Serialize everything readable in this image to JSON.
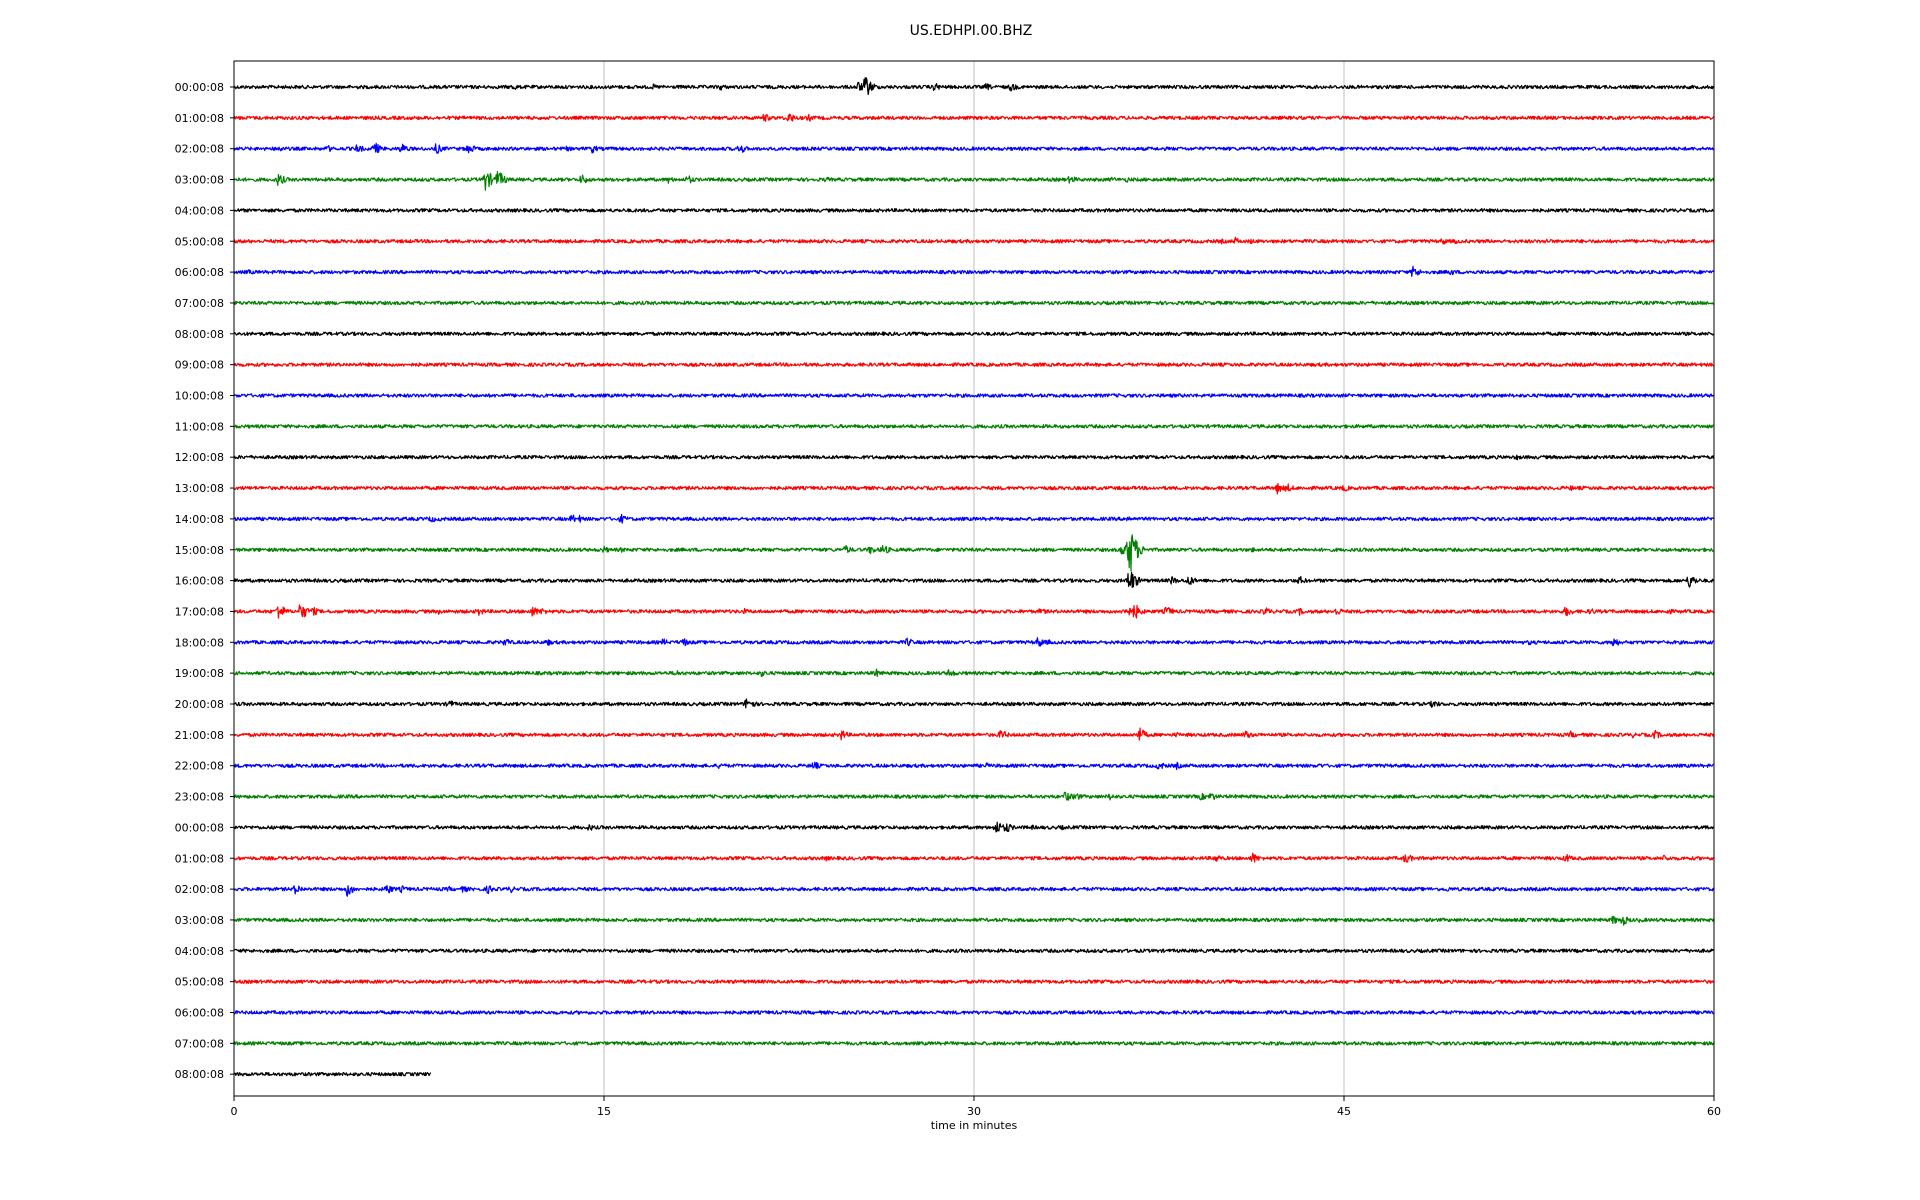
{
  "chart_data": {
    "type": "line",
    "title": "US.EDHPI.00.BHZ",
    "xlabel": "time in minutes",
    "xlim": [
      0,
      60
    ],
    "x_ticks": [
      0,
      15,
      30,
      45,
      60
    ],
    "x_tick_labels": [
      "0",
      "15",
      "30",
      "45",
      "60"
    ],
    "grid": "vertical",
    "colors": [
      "#000000",
      "#ff0000",
      "#0000ff",
      "#008000"
    ],
    "rows": [
      {
        "label": "00:00:08",
        "color": "#000000",
        "end": 60,
        "events": [
          [
            5,
            2
          ],
          [
            11.3,
            4
          ],
          [
            17,
            3
          ],
          [
            19.7,
            4
          ],
          [
            25.3,
            6
          ],
          [
            25.6,
            12
          ],
          [
            28.4,
            5
          ],
          [
            30.5,
            4
          ],
          [
            31.5,
            5
          ],
          [
            56.5,
            2
          ]
        ]
      },
      {
        "label": "01:00:08",
        "color": "#ff0000",
        "end": 60,
        "events": [
          [
            21.5,
            5
          ],
          [
            22.5,
            6
          ],
          [
            23.3,
            4
          ],
          [
            28.5,
            2
          ]
        ]
      },
      {
        "label": "02:00:08",
        "color": "#0000ff",
        "end": 60,
        "events": [
          [
            1.8,
            4
          ],
          [
            3.8,
            4
          ],
          [
            5,
            5
          ],
          [
            5.7,
            7
          ],
          [
            6.8,
            6
          ],
          [
            8.2,
            6
          ],
          [
            9.5,
            6
          ],
          [
            13.5,
            3
          ],
          [
            14.5,
            5
          ],
          [
            20.5,
            6
          ]
        ]
      },
      {
        "label": "03:00:08",
        "color": "#008000",
        "end": 60,
        "events": [
          [
            1.8,
            7
          ],
          [
            10.2,
            12
          ],
          [
            10.7,
            10
          ],
          [
            14.1,
            6
          ],
          [
            17.6,
            4
          ],
          [
            18.4,
            5
          ],
          [
            24,
            3
          ],
          [
            33.9,
            5
          ],
          [
            35.6,
            3
          ],
          [
            36.2,
            3
          ]
        ]
      },
      {
        "label": "04:00:08",
        "color": "#000000",
        "end": 60,
        "events": []
      },
      {
        "label": "05:00:08",
        "color": "#ff0000",
        "end": 60,
        "events": [
          [
            40,
            3
          ],
          [
            40.6,
            4
          ],
          [
            41.2,
            3
          ],
          [
            45.2,
            2
          ],
          [
            49,
            4
          ],
          [
            49.5,
            3
          ],
          [
            53.2,
            3
          ],
          [
            55.4,
            2
          ]
        ]
      },
      {
        "label": "06:00:08",
        "color": "#0000ff",
        "end": 60,
        "events": [
          [
            0.6,
            3
          ],
          [
            8,
            2
          ],
          [
            47.8,
            7
          ],
          [
            49.3,
            4
          ],
          [
            50,
            3
          ]
        ]
      },
      {
        "label": "07:00:08",
        "color": "#008000",
        "end": 60,
        "events": []
      },
      {
        "label": "08:00:08",
        "color": "#000000",
        "end": 60,
        "events": []
      },
      {
        "label": "09:00:08",
        "color": "#ff0000",
        "end": 60,
        "events": []
      },
      {
        "label": "10:00:08",
        "color": "#0000ff",
        "end": 60,
        "events": []
      },
      {
        "label": "11:00:08",
        "color": "#008000",
        "end": 60,
        "events": []
      },
      {
        "label": "12:00:08",
        "color": "#000000",
        "end": 60,
        "events": [
          [
            52,
            3
          ],
          [
            53,
            2
          ]
        ]
      },
      {
        "label": "13:00:08",
        "color": "#ff0000",
        "end": 60,
        "events": [
          [
            42.3,
            6
          ],
          [
            42.7,
            5
          ],
          [
            43.5,
            3
          ],
          [
            45,
            4
          ],
          [
            54.2,
            3
          ],
          [
            54.7,
            2
          ]
        ]
      },
      {
        "label": "14:00:08",
        "color": "#0000ff",
        "end": 60,
        "events": [
          [
            8,
            4
          ],
          [
            8.4,
            3
          ],
          [
            13.7,
            5
          ],
          [
            14,
            4
          ],
          [
            15.7,
            5
          ],
          [
            36.2,
            4
          ]
        ]
      },
      {
        "label": "15:00:08",
        "color": "#008000",
        "end": 60,
        "events": [
          [
            15,
            4
          ],
          [
            15.7,
            3
          ],
          [
            24.8,
            5
          ],
          [
            25.8,
            5
          ],
          [
            26.3,
            6
          ],
          [
            29.5,
            3
          ],
          [
            36,
            7
          ],
          [
            36.3,
            28
          ],
          [
            41.3,
            3
          ]
        ]
      },
      {
        "label": "16:00:08",
        "color": "#000000",
        "end": 60,
        "events": [
          [
            4.9,
            1.5
          ],
          [
            36.3,
            14
          ],
          [
            38,
            5
          ],
          [
            38.7,
            6
          ],
          [
            43.2,
            5
          ],
          [
            59,
            8
          ]
        ]
      },
      {
        "label": "17:00:08",
        "color": "#ff0000",
        "end": 60,
        "events": [
          [
            1.8,
            9
          ],
          [
            2.7,
            10
          ],
          [
            3.2,
            5
          ],
          [
            8.3,
            3
          ],
          [
            9.9,
            5
          ],
          [
            12.1,
            6
          ],
          [
            12.5,
            4
          ],
          [
            20.7,
            3
          ],
          [
            26,
            2
          ],
          [
            32.7,
            4
          ],
          [
            36.1,
            8
          ],
          [
            36.5,
            9
          ],
          [
            37.8,
            6
          ],
          [
            41.8,
            5
          ],
          [
            43.2,
            4
          ],
          [
            44.7,
            5
          ],
          [
            54,
            6
          ],
          [
            55,
            4
          ],
          [
            58.1,
            4
          ]
        ]
      },
      {
        "label": "18:00:08",
        "color": "#0000ff",
        "end": 60,
        "events": [
          [
            11,
            5
          ],
          [
            12.7,
            4
          ],
          [
            17.4,
            4
          ],
          [
            18.2,
            5
          ],
          [
            27.3,
            5
          ],
          [
            32.6,
            6
          ],
          [
            33,
            3
          ],
          [
            52.5,
            3
          ],
          [
            55.9,
            6
          ]
        ]
      },
      {
        "label": "19:00:08",
        "color": "#008000",
        "end": 60,
        "events": [
          [
            5,
            2
          ],
          [
            17.9,
            4
          ],
          [
            21.4,
            4
          ],
          [
            26,
            5
          ],
          [
            29,
            5
          ],
          [
            42.3,
            2
          ]
        ]
      },
      {
        "label": "20:00:08",
        "color": "#000000",
        "end": 60,
        "events": [
          [
            8.7,
            5
          ],
          [
            20.8,
            8
          ],
          [
            45.8,
            3
          ],
          [
            48.6,
            5
          ]
        ]
      },
      {
        "label": "21:00:08",
        "color": "#ff0000",
        "end": 60,
        "events": [
          [
            24.6,
            6
          ],
          [
            31.1,
            6
          ],
          [
            36.7,
            8
          ],
          [
            38.2,
            3
          ],
          [
            41,
            5
          ],
          [
            54.2,
            4
          ],
          [
            56.7,
            3
          ],
          [
            57.6,
            5
          ]
        ]
      },
      {
        "label": "22:00:08",
        "color": "#0000ff",
        "end": 60,
        "events": [
          [
            19.7,
            4
          ],
          [
            23.5,
            5
          ],
          [
            30.5,
            3
          ],
          [
            37.5,
            5
          ],
          [
            38.2,
            4
          ],
          [
            44,
            3
          ]
        ]
      },
      {
        "label": "23:00:08",
        "color": "#008000",
        "end": 60,
        "events": [
          [
            5,
            2
          ],
          [
            25.8,
            2
          ],
          [
            33.7,
            6
          ],
          [
            34.1,
            5
          ],
          [
            35.5,
            4
          ],
          [
            39.2,
            4
          ],
          [
            39.6,
            5
          ],
          [
            40.6,
            2
          ],
          [
            51.3,
            2
          ],
          [
            59.5,
            2
          ]
        ]
      },
      {
        "label": "00:00:08",
        "color": "#000000",
        "end": 60,
        "events": [
          [
            14.4,
            4
          ],
          [
            30.9,
            8
          ],
          [
            31.3,
            6
          ],
          [
            32.3,
            3
          ],
          [
            33.5,
            3
          ]
        ]
      },
      {
        "label": "01:00:08",
        "color": "#ff0000",
        "end": 60,
        "events": [
          [
            24,
            3
          ],
          [
            39.8,
            5
          ],
          [
            41.3,
            6
          ],
          [
            47.5,
            6
          ],
          [
            54,
            5
          ],
          [
            58,
            4
          ]
        ]
      },
      {
        "label": "02:00:08",
        "color": "#0000ff",
        "end": 60,
        "events": [
          [
            2.5,
            6
          ],
          [
            4.6,
            8
          ],
          [
            6.2,
            6
          ],
          [
            6.8,
            4
          ],
          [
            8.7,
            3
          ],
          [
            9.3,
            4
          ],
          [
            10.3,
            5
          ],
          [
            11.2,
            4
          ],
          [
            49.2,
            3
          ]
        ]
      },
      {
        "label": "03:00:08",
        "color": "#008000",
        "end": 60,
        "events": [
          [
            55.9,
            5
          ],
          [
            56.3,
            6
          ],
          [
            57,
            3
          ]
        ]
      },
      {
        "label": "04:00:08",
        "color": "#000000",
        "end": 60,
        "events": [
          [
            36,
            2
          ]
        ]
      },
      {
        "label": "05:00:08",
        "color": "#ff0000",
        "end": 60,
        "events": []
      },
      {
        "label": "06:00:08",
        "color": "#0000ff",
        "end": 60,
        "events": []
      },
      {
        "label": "07:00:08",
        "color": "#008000",
        "end": 60,
        "events": []
      },
      {
        "label": "08:00:08",
        "color": "#000000",
        "end": 8,
        "events": []
      }
    ]
  }
}
